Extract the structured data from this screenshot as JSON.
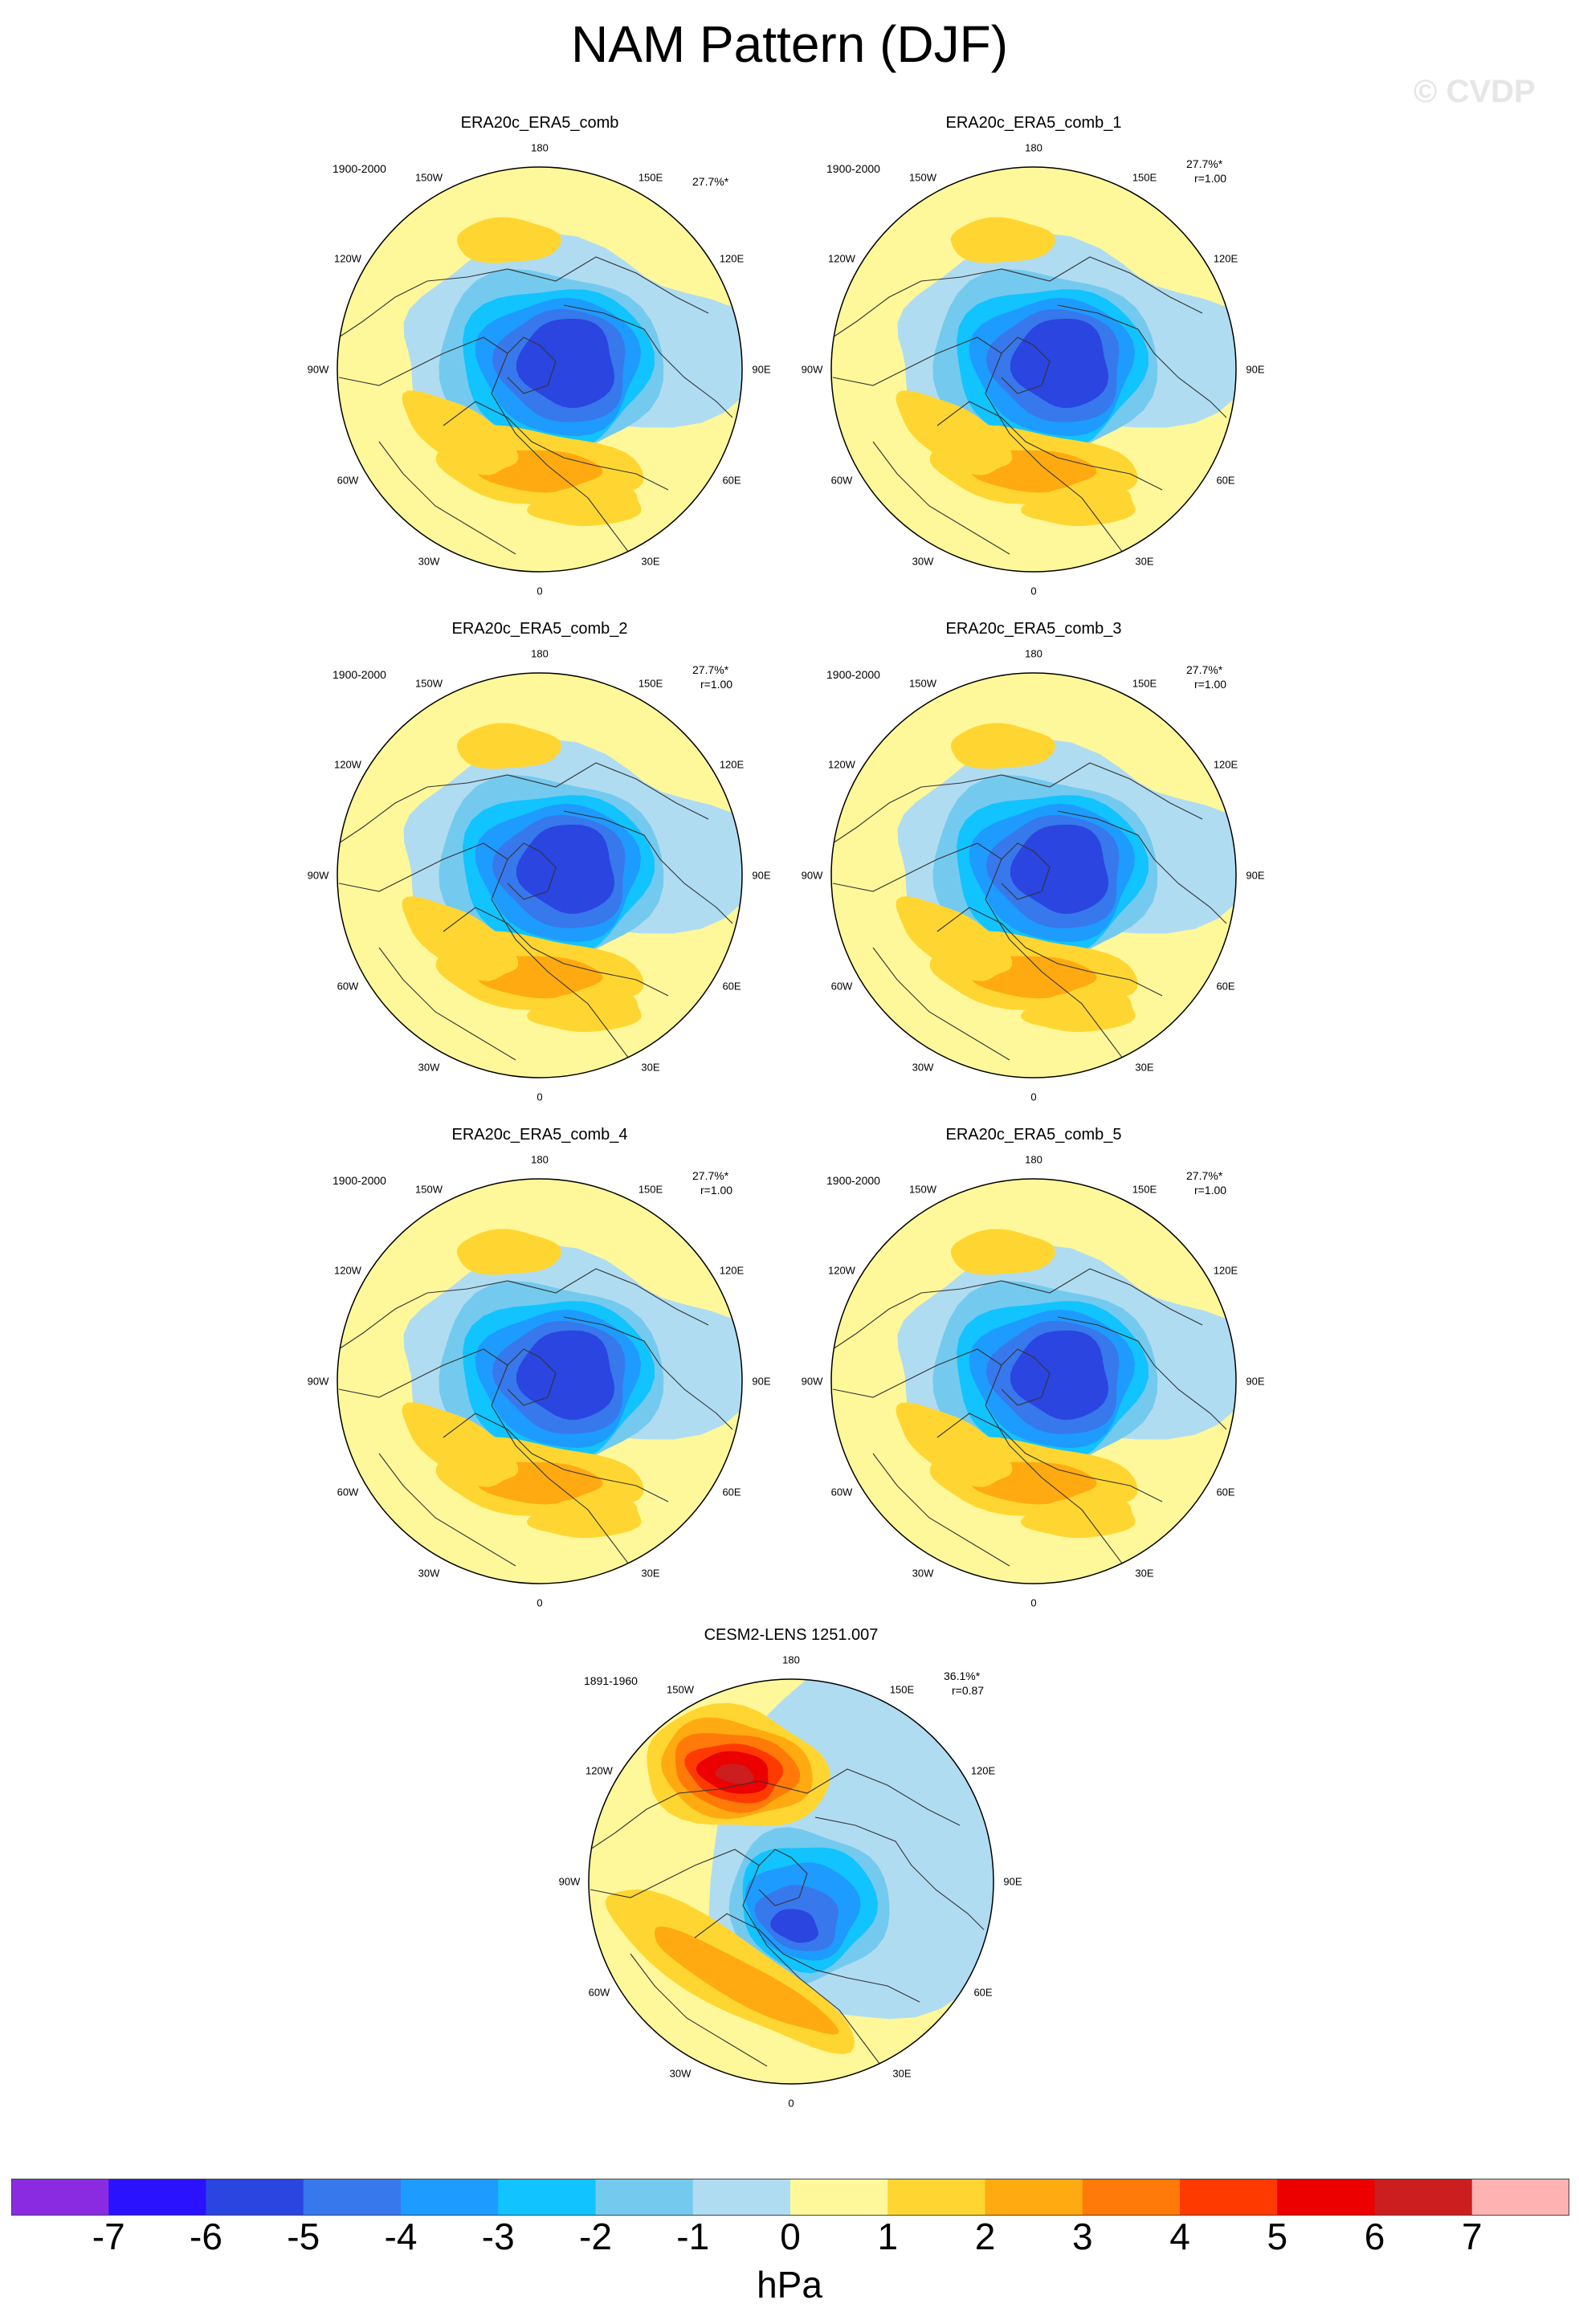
{
  "title": "NAM Pattern (DJF)",
  "watermark": "© CVDP",
  "lon_labels": [
    "180",
    "150E",
    "120E",
    "90E",
    "60E",
    "30E",
    "0",
    "30W",
    "60W",
    "90W",
    "120W",
    "150W"
  ],
  "panels": [
    {
      "title": "ERA20c_ERA5_comb",
      "period": "1900-2000",
      "pct": "27.7%*",
      "r": "",
      "pattern": "obs"
    },
    {
      "title": "ERA20c_ERA5_comb_1",
      "period": "1900-2000",
      "pct": "27.7%*",
      "r": "r=1.00",
      "pattern": "obs"
    },
    {
      "title": "ERA20c_ERA5_comb_2",
      "period": "1900-2000",
      "pct": "27.7%*",
      "r": "r=1.00",
      "pattern": "obs"
    },
    {
      "title": "ERA20c_ERA5_comb_3",
      "period": "1900-2000",
      "pct": "27.7%*",
      "r": "r=1.00",
      "pattern": "obs"
    },
    {
      "title": "ERA20c_ERA5_comb_4",
      "period": "1900-2000",
      "pct": "27.7%*",
      "r": "r=1.00",
      "pattern": "obs"
    },
    {
      "title": "ERA20c_ERA5_comb_5",
      "period": "1900-2000",
      "pct": "27.7%*",
      "r": "r=1.00",
      "pattern": "obs"
    },
    {
      "title": "CESM2-LENS 1251.007",
      "period": "1891-1960",
      "pct": "36.1%*",
      "r": "r=0.87",
      "pattern": "model"
    }
  ],
  "colorbar": {
    "units": "hPa",
    "ticks": [
      "-7",
      "-6",
      "-5",
      "-4",
      "-3",
      "-2",
      "-1",
      "0",
      "1",
      "2",
      "3",
      "4",
      "5",
      "6",
      "7"
    ],
    "colors": [
      "#8a2be2",
      "#2a12ff",
      "#2a45e0",
      "#3778ec",
      "#1e9bff",
      "#11c3ff",
      "#74caee",
      "#b0dcf2",
      "#fff89a",
      "#ffd631",
      "#ffaa10",
      "#ff7a08",
      "#ff3a00",
      "#ec0000",
      "#cc1e1e",
      "#ffb2b2"
    ]
  }
}
